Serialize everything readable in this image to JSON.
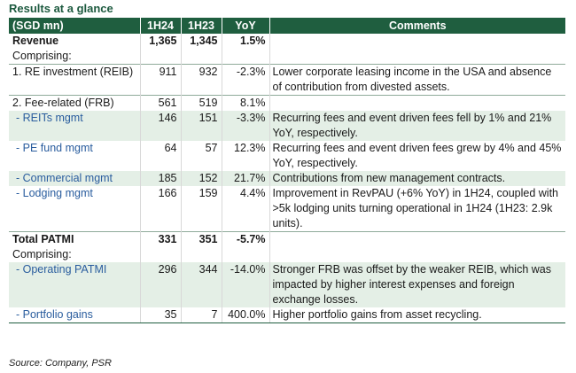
{
  "title": "Results at a glance",
  "headers": {
    "label": "(SGD mn)",
    "h1": "1H24",
    "h2": "1H23",
    "yoy": "YoY",
    "comments": "Comments"
  },
  "rows": {
    "revenue": {
      "label": "Revenue",
      "h1": "1,365",
      "h2": "1,345",
      "yoy": "1.5%",
      "comment": ""
    },
    "comprising1": {
      "label": "Comprising:"
    },
    "reib": {
      "label": "1. RE investment (REIB)",
      "h1": "911",
      "h2": "932",
      "yoy": "-2.3%",
      "comment": "Lower corporate leasing income in the USA and absence of contribution from divested assets."
    },
    "frb": {
      "label": "2. Fee-related (FRB)",
      "h1": "561",
      "h2": "519",
      "yoy": "8.1%",
      "comment": ""
    },
    "reits": {
      "label": "- REITs mgmt",
      "h1": "146",
      "h2": "151",
      "yoy": "-3.3%",
      "comment": "Recurring fees and event driven fees fell by 1% and 21% YoY, respectively."
    },
    "pe": {
      "label": "- PE fund mgmt",
      "h1": "64",
      "h2": "57",
      "yoy": "12.3%",
      "comment": "Recurring fees and event driven fees grew by 4% and 45% YoY, respectively."
    },
    "commercial": {
      "label": "- Commercial mgmt",
      "h1": "185",
      "h2": "152",
      "yoy": "21.7%",
      "comment": "Contributions from new management contracts."
    },
    "lodging": {
      "label": "- Lodging mgmt",
      "h1": "166",
      "h2": "159",
      "yoy": "4.4%",
      "comment": "Improvement in RevPAU (+6% YoY) in 1H24, coupled with >5k lodging units turning operational in 1H24 (1H23: 2.9k units)."
    },
    "patmi": {
      "label": "Total PATMI",
      "h1": "331",
      "h2": "351",
      "yoy": "-5.7%",
      "comment": ""
    },
    "comprising2": {
      "label": "Comprising:"
    },
    "operating": {
      "label": "- Operating PATMI",
      "h1": "296",
      "h2": "344",
      "yoy": "-14.0%",
      "comment": "Stronger FRB was offset by the weaker REIB, which was impacted by higher interest expenses and foreign exchange losses."
    },
    "portfolio": {
      "label": "- Portfolio gains",
      "h1": "35",
      "h2": "7",
      "yoy": "400.0%",
      "comment": "Higher portfolio gains from asset recycling."
    }
  },
  "source": "Source: Company, PSR"
}
